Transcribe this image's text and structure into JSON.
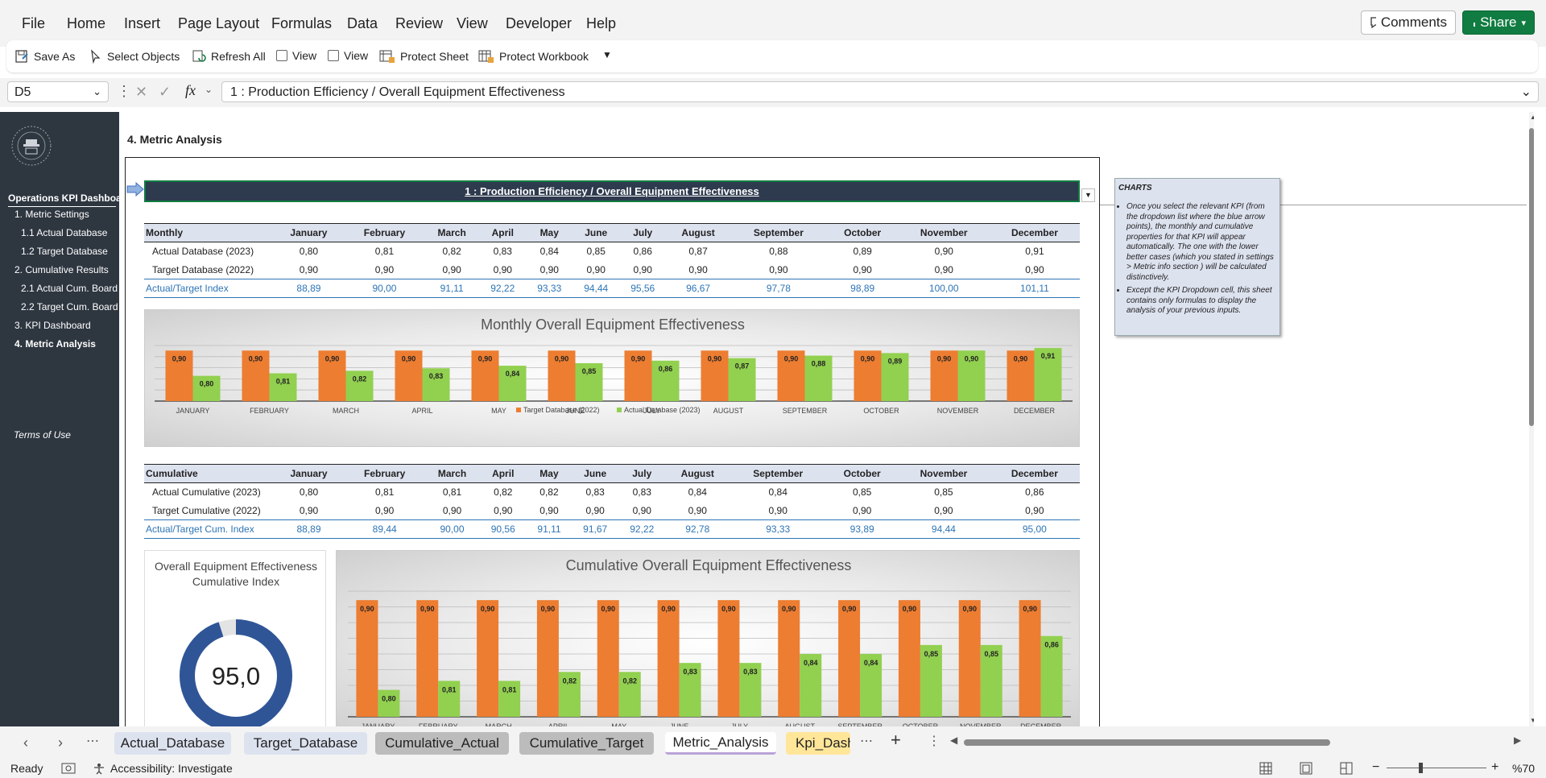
{
  "menu": [
    "File",
    "Home",
    "Insert",
    "Page Layout",
    "Formulas",
    "Data",
    "Review",
    "View",
    "Developer",
    "Help"
  ],
  "top_buttons": {
    "comments": "Comments",
    "share": "Share"
  },
  "ribbon": {
    "save_as": "Save As",
    "select_objects": "Select Objects",
    "refresh_all": "Refresh All",
    "view1": "View",
    "view2": "View",
    "protect_sheet": "Protect Sheet",
    "protect_workbook": "Protect Workbook"
  },
  "formula_bar": {
    "name_box": "D5",
    "fx": "fx",
    "formula": "1 : Production Efficiency / Overall Equipment Effectiveness"
  },
  "sidebar": {
    "title": "Operations KPI Dashboard",
    "items": [
      "1. Metric Settings",
      "1.1 Actual Database",
      "1.2 Target Database",
      "2. Cumulative Results",
      "2.1 Actual Cum. Board",
      "2.2 Target Cum. Board",
      "3. KPI Dashboard",
      "4. Metric Analysis"
    ],
    "terms": "Terms of Use"
  },
  "page": {
    "heading": "4. Metric Analysis",
    "selector": "1 : Production Efficiency / Overall Equipment Effectiveness"
  },
  "months": [
    "January",
    "February",
    "March",
    "April",
    "May",
    "June",
    "July",
    "August",
    "September",
    "October",
    "November",
    "December"
  ],
  "monthly_table": {
    "header": "Monthly",
    "rows": [
      {
        "label": "Actual Database (2023)",
        "values": [
          "0,80",
          "0,81",
          "0,82",
          "0,83",
          "0,84",
          "0,85",
          "0,86",
          "0,87",
          "0,88",
          "0,89",
          "0,90",
          "0,91"
        ]
      },
      {
        "label": "Target Database (2022)",
        "values": [
          "0,90",
          "0,90",
          "0,90",
          "0,90",
          "0,90",
          "0,90",
          "0,90",
          "0,90",
          "0,90",
          "0,90",
          "0,90",
          "0,90"
        ]
      },
      {
        "label": "Actual/Target Index",
        "values": [
          "88,89",
          "90,00",
          "91,11",
          "92,22",
          "93,33",
          "94,44",
          "95,56",
          "96,67",
          "97,78",
          "98,89",
          "100,00",
          "101,11"
        ]
      }
    ]
  },
  "cumulative_table": {
    "header": "Cumulative",
    "rows": [
      {
        "label": "Actual Cumulative (2023)",
        "values": [
          "0,80",
          "0,81",
          "0,81",
          "0,82",
          "0,82",
          "0,83",
          "0,83",
          "0,84",
          "0,84",
          "0,85",
          "0,85",
          "0,86"
        ]
      },
      {
        "label": "Target Cumulative (2022)",
        "values": [
          "0,90",
          "0,90",
          "0,90",
          "0,90",
          "0,90",
          "0,90",
          "0,90",
          "0,90",
          "0,90",
          "0,90",
          "0,90",
          "0,90"
        ]
      },
      {
        "label": "Actual/Target Cum. Index",
        "values": [
          "88,89",
          "89,44",
          "90,00",
          "90,56",
          "91,11",
          "91,67",
          "92,22",
          "92,78",
          "93,33",
          "93,89",
          "94,44",
          "95,00"
        ]
      }
    ]
  },
  "gauge": {
    "title": "Overall Equipment Effectiveness Cumulative Index",
    "value": "95,0",
    "fraction": 0.95
  },
  "colors": {
    "target": "#ed7d31",
    "actual": "#92d050",
    "sidebar": "#2e3640",
    "header_bar": "#2e3a4e",
    "index_blue": "#2e75b6",
    "gauge": "#2f5597"
  },
  "chart_data": [
    {
      "type": "bar",
      "title": "Monthly Overall Equipment Effectiveness",
      "categories": [
        "JANUARY",
        "FEBRUARY",
        "MARCH",
        "APRIL",
        "MAY",
        "JUNE",
        "JULY",
        "AUGUST",
        "SEPTEMBER",
        "OCTOBER",
        "NOVEMBER",
        "DECEMBER"
      ],
      "series": [
        {
          "name": "Target Database (2022)",
          "values": [
            0.9,
            0.9,
            0.9,
            0.9,
            0.9,
            0.9,
            0.9,
            0.9,
            0.9,
            0.9,
            0.9,
            0.9
          ],
          "labels": [
            "0,90",
            "0,90",
            "0,90",
            "0,90",
            "0,90",
            "0,90",
            "0,90",
            "0,90",
            "0,90",
            "0,90",
            "0,90",
            "0,90"
          ]
        },
        {
          "name": "Actual Database (2023)",
          "values": [
            0.8,
            0.81,
            0.82,
            0.83,
            0.84,
            0.85,
            0.86,
            0.87,
            0.88,
            0.89,
            0.9,
            0.91
          ],
          "labels": [
            "0,80",
            "0,81",
            "0,82",
            "0,83",
            "0,84",
            "0,85",
            "0,86",
            "0,87",
            "0,88",
            "0,89",
            "0,90",
            "0,91"
          ]
        }
      ],
      "ylim": [
        0.7,
        0.92
      ],
      "legend": "bottom"
    },
    {
      "type": "bar",
      "title": "Cumulative Overall Equipment Effectiveness",
      "categories": [
        "JANUARY",
        "FEBRUARY",
        "MARCH",
        "APRIL",
        "MAY",
        "JUNE",
        "JULY",
        "AUGUST",
        "SEPTEMBER",
        "OCTOBER",
        "NOVEMBER",
        "DECEMBER"
      ],
      "series": [
        {
          "name": "Target Cumulative (2022)",
          "values": [
            0.9,
            0.9,
            0.9,
            0.9,
            0.9,
            0.9,
            0.9,
            0.9,
            0.9,
            0.9,
            0.9,
            0.9
          ],
          "labels": [
            "0,90",
            "0,90",
            "0,90",
            "0,90",
            "0,90",
            "0,90",
            "0,90",
            "0,90",
            "0,90",
            "0,90",
            "0,90",
            "0,90"
          ]
        },
        {
          "name": "Actual Cumulative (2023)",
          "values": [
            0.8,
            0.81,
            0.81,
            0.82,
            0.82,
            0.83,
            0.83,
            0.84,
            0.84,
            0.85,
            0.85,
            0.86
          ],
          "labels": [
            "0,80",
            "0,81",
            "0,81",
            "0,82",
            "0,82",
            "0,83",
            "0,83",
            "0,84",
            "0,84",
            "0,85",
            "0,85",
            "0,86"
          ]
        }
      ],
      "ylim": [
        0.77,
        0.91
      ],
      "legend": "none"
    }
  ],
  "note": {
    "title": "CHARTS",
    "bullets": [
      "Once you select the relevant KPI (from the dropdown list where the blue arrow points), the monthly and cumulative properties for that KPI will appear automatically. The one with the lower better cases (which you stated in settings > Metric info section ) will be calculated distinctively.",
      "Except the KPI Dropdown cell, this sheet contains only formulas to display the analysis of your previous inputs."
    ]
  },
  "tabs": [
    "Actual_Database",
    "Target_Database",
    "Cumulative_Actual",
    "Cumulative_Target",
    "Metric_Analysis",
    "Kpi_Dash"
  ],
  "status": {
    "ready": "Ready",
    "accessibility": "Accessibility: Investigate",
    "zoom": "%70"
  }
}
